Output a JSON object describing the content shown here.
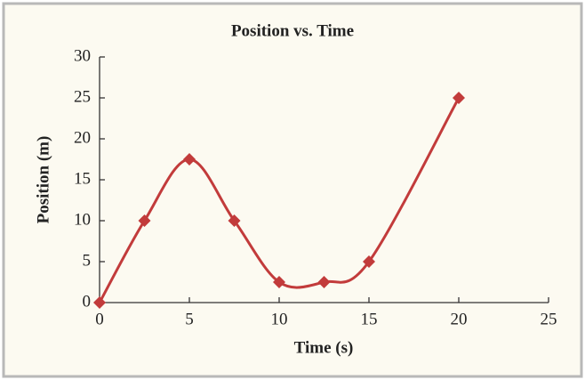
{
  "chart_data": {
    "type": "line",
    "title": "Position vs. Time",
    "x_label": "Time (s)",
    "y_label": "Position (m)",
    "x": [
      0,
      2.5,
      5,
      7.5,
      10,
      12.5,
      15,
      20
    ],
    "values": [
      0,
      10,
      17.5,
      10,
      2.5,
      2.5,
      5,
      25
    ],
    "color": "#c23b3b",
    "smooth": true,
    "markers": "diamond",
    "xlim": [
      0,
      25
    ],
    "xticks": [
      0,
      5,
      10,
      15,
      20,
      25
    ],
    "ylim": [
      0,
      30
    ],
    "yticks": [
      0,
      5,
      10,
      15,
      20,
      25,
      30
    ]
  }
}
